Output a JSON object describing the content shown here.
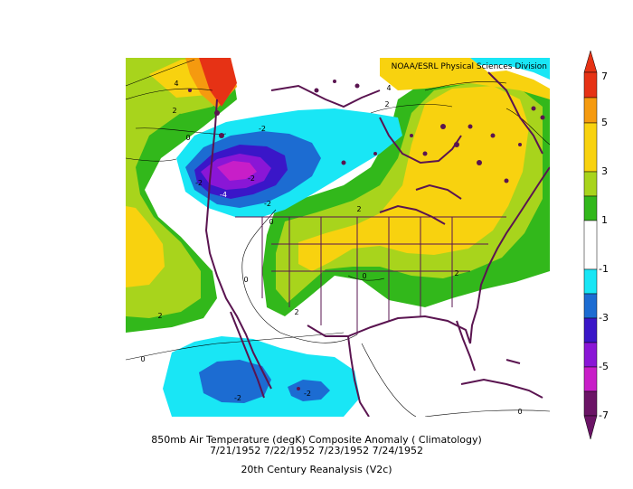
{
  "source_credit": "NOAA/ESRL Physical Sciences Division",
  "title_line1": "850mb Air Temperature (degK) Composite Anomaly ( Climatology)",
  "title_line2": "7/21/1952 7/22/1952 7/23/1952 7/24/1952",
  "title_line3": "20th Century Reanalysis (V2c)",
  "colorbar": {
    "tick_labels": [
      "7",
      "5",
      "3",
      "1",
      "-1",
      "-3",
      "-5",
      "-7"
    ],
    "colors": [
      "#e63215",
      "#f59a0f",
      "#f8d20f",
      "#a8d41c",
      "#32b81b",
      "#ffffff",
      "#ffffff",
      "#19e6f5",
      "#1c6cd2",
      "#3a16c8",
      "#8a16d6",
      "#c81ec8",
      "#6b1466"
    ]
  },
  "contour_labels": [
    "4",
    "2",
    "0",
    "-2",
    "-4",
    "-2",
    "0",
    "2",
    "4",
    "2",
    "2",
    "2",
    "0",
    "0",
    "2",
    "-2",
    "-2",
    "0",
    "0",
    "-2",
    "-2"
  ],
  "shading": {
    "background": "#ffffff",
    "land_outline": "#5a1450"
  }
}
